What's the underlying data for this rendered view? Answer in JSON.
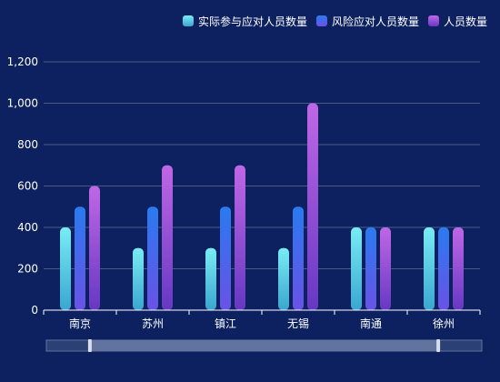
{
  "chart_data": {
    "type": "bar",
    "categories": [
      "南京",
      "苏州",
      "镇江",
      "无锡",
      "南通",
      "徐州"
    ],
    "series": [
      {
        "name": "实际参与应对人员数量",
        "values": [
          400,
          300,
          300,
          300,
          400,
          400
        ]
      },
      {
        "name": "风险应对人员数量",
        "values": [
          500,
          500,
          500,
          500,
          400,
          400
        ]
      },
      {
        "name": "人员数量",
        "values": [
          600,
          700,
          700,
          1000,
          400,
          400
        ]
      }
    ],
    "y_ticks": [
      "0",
      "200",
      "400",
      "600",
      "800",
      "1,000",
      "1,200"
    ],
    "ylim": [
      0,
      1200
    ],
    "grid": true,
    "legend_position": "top-right",
    "colors": {
      "background": "#0d2160",
      "grid": "#4a5a86",
      "axis": "#ffffff",
      "series": [
        {
          "top": "#79ecf4",
          "bottom": "#3aa6d0"
        },
        {
          "top": "#2a7af0",
          "bottom": "#6a52e6"
        },
        {
          "top": "#c067e6",
          "bottom": "#6638c2"
        }
      ],
      "zoom_track": "#2b4176",
      "zoom_fill": "#61739e",
      "zoom_handle": "#d8deea"
    },
    "data_zoom": {
      "start": 0.1,
      "end": 0.9
    }
  }
}
